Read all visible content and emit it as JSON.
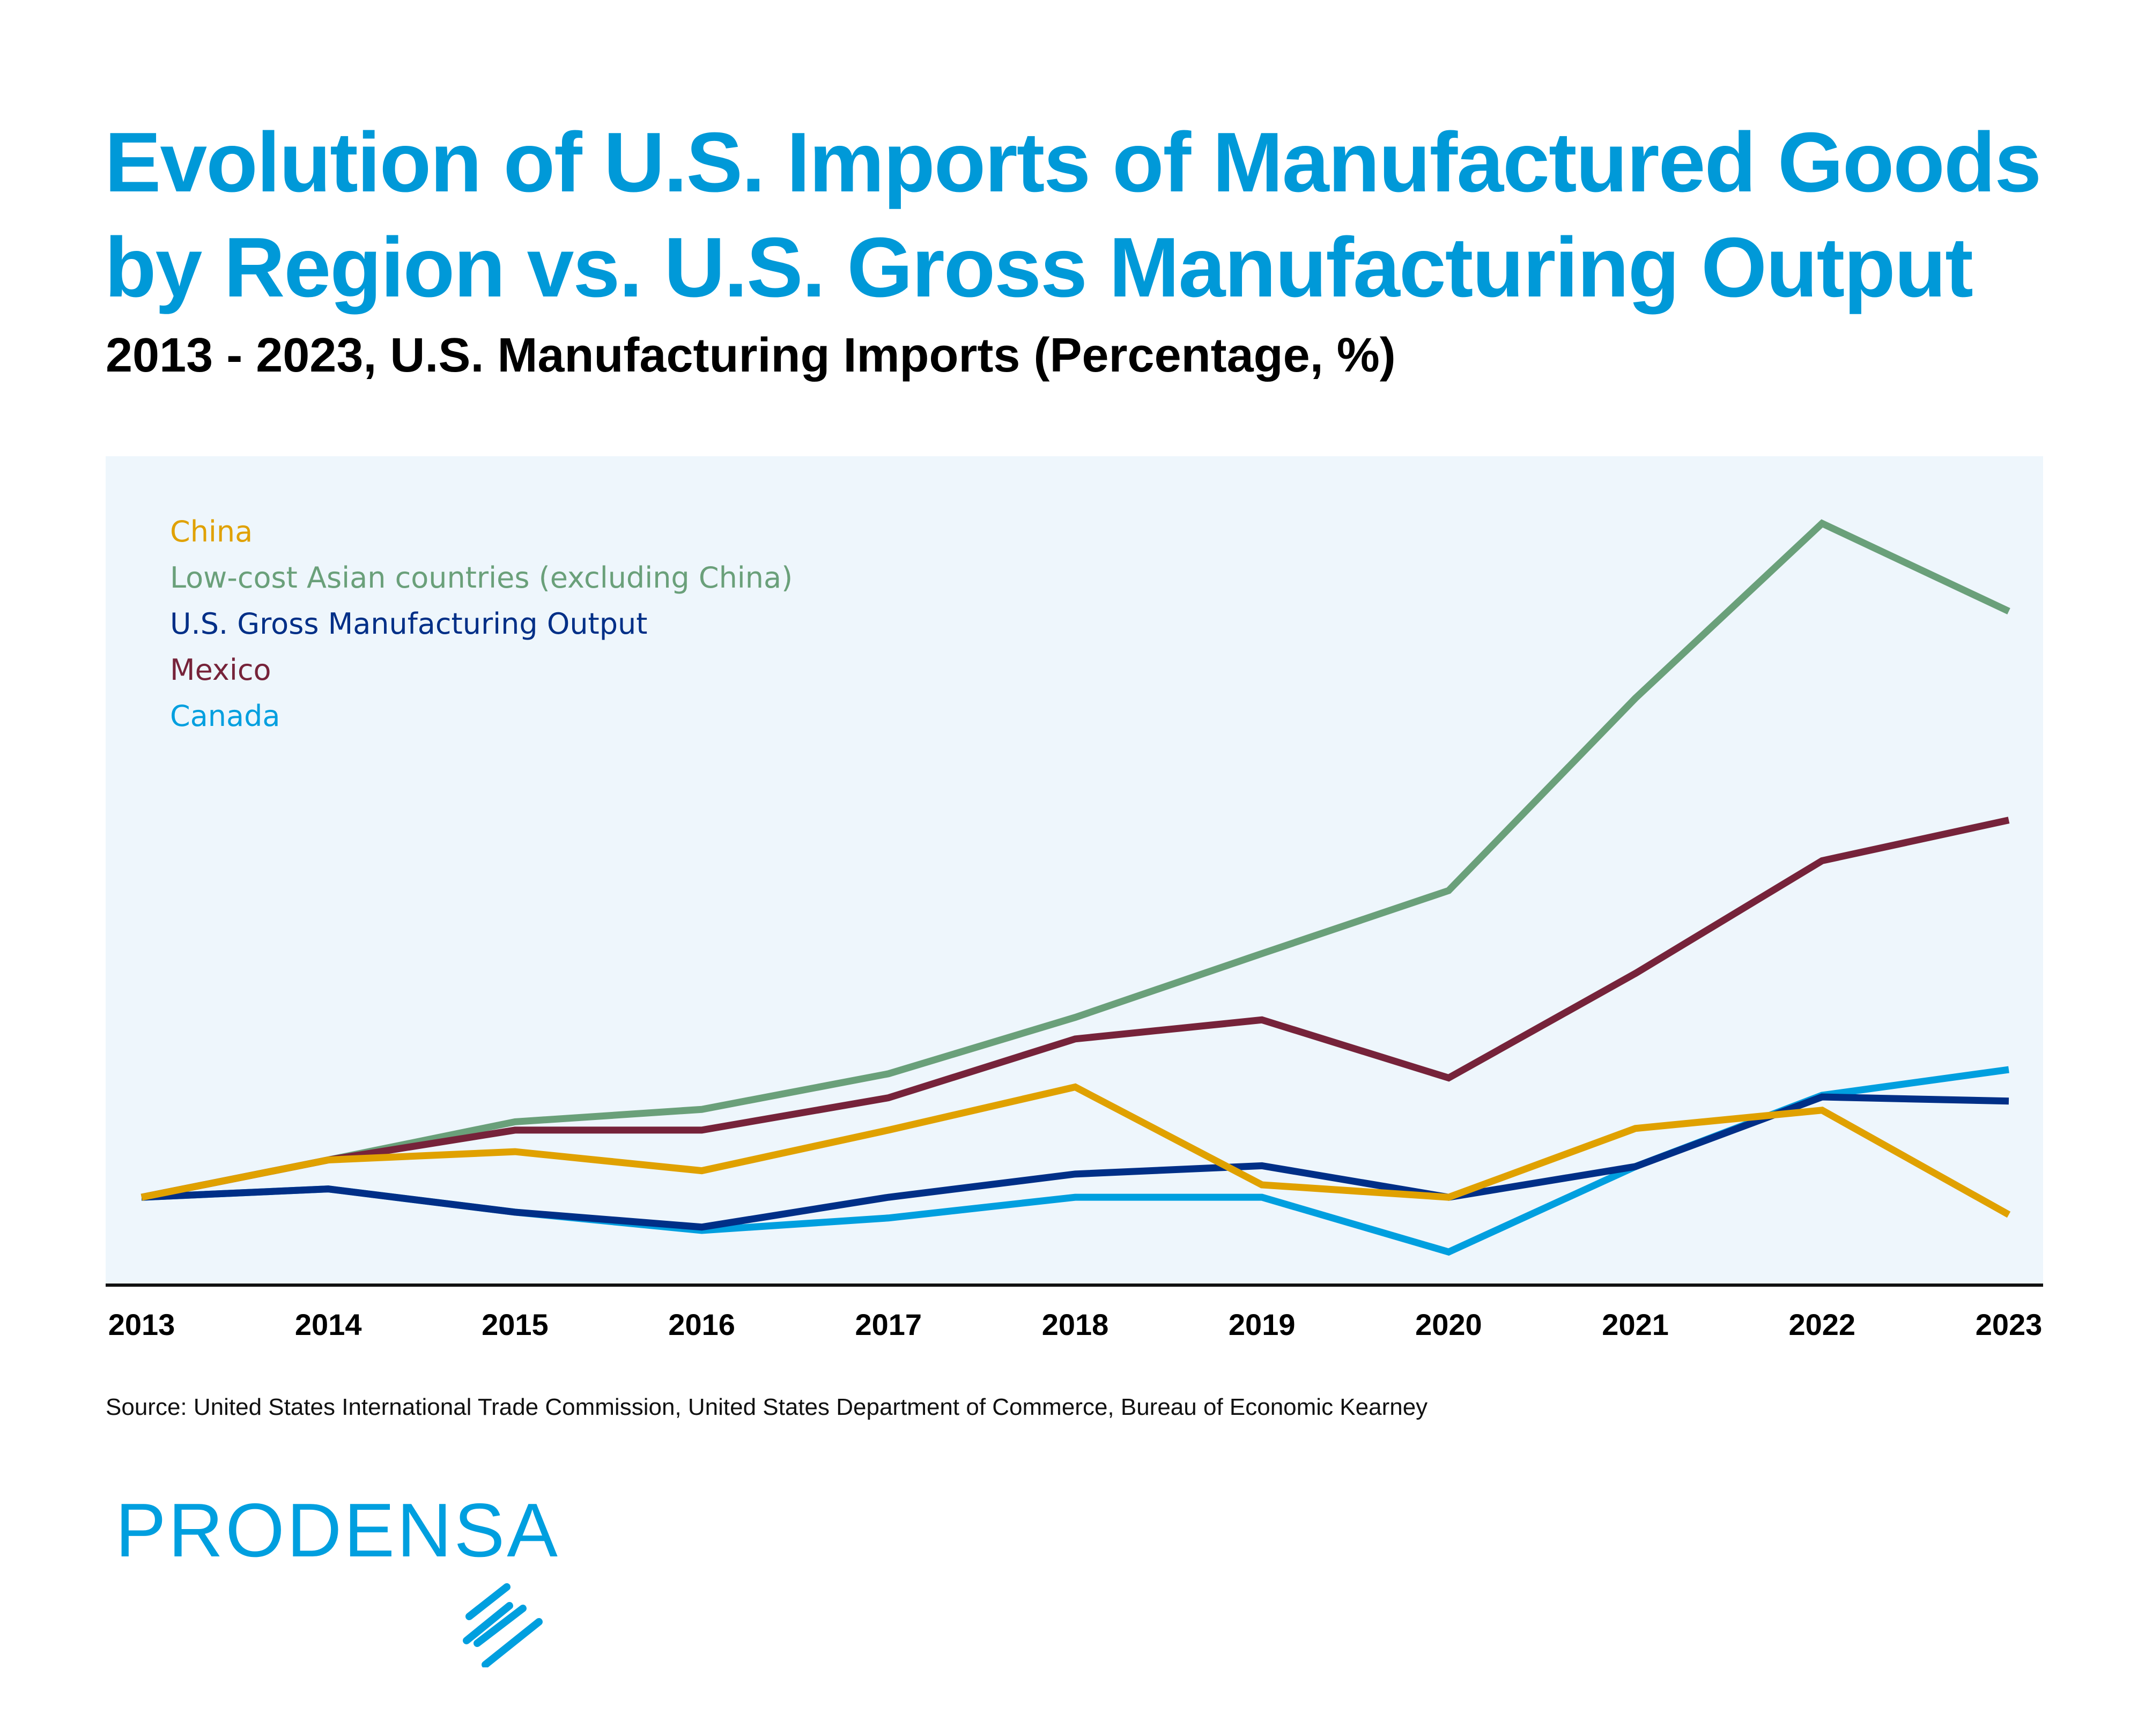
{
  "title": {
    "line1": "Evolution of U.S. Imports of Manufactured Goods",
    "line2": "by Region vs. U.S. Gross Manufacturing Output"
  },
  "subtitle": "2013 - 2023, U.S. Manufacturing Imports (Percentage, %)",
  "source": "Source: United States International Trade Commission, United States Department of Commerce, Bureau of Economic Kearney",
  "logo": {
    "text": "PRODENSA",
    "color": "#009fdf"
  },
  "chart_data": {
    "type": "line",
    "title": "",
    "xlabel": "",
    "ylabel": "",
    "y_axis_shown": false,
    "value_note_scale": "relative, unlabeled axis",
    "ylim": [
      0,
      100
    ],
    "grid": false,
    "legend_position": "top-left",
    "background": "#eef6fc",
    "categories": [
      "2013",
      "2014",
      "2015",
      "2016",
      "2017",
      "2018",
      "2019",
      "2020",
      "2021",
      "2022",
      "2023"
    ],
    "series": [
      {
        "name": "China",
        "color": "#e0a100",
        "values": [
          10.6,
          15.1,
          16.1,
          13.8,
          18.7,
          23.9,
          12.1,
          10.6,
          18.9,
          21.1,
          8.5
        ]
      },
      {
        "name": "Low-cost Asian countries (excluding China)",
        "color": "#6aa07a",
        "values": [
          10.6,
          15.1,
          19.7,
          21.2,
          25.5,
          32.3,
          40.0,
          47.6,
          70.8,
          91.9,
          81.3
        ]
      },
      {
        "name": "U.S. Gross Manufacturing Output",
        "color": "#002f87",
        "values": [
          10.6,
          11.6,
          8.8,
          7.0,
          10.6,
          13.4,
          14.4,
          10.6,
          14.3,
          22.7,
          22.2
        ]
      },
      {
        "name": "Mexico",
        "color": "#76233a",
        "values": [
          10.6,
          15.1,
          18.7,
          18.7,
          22.6,
          29.7,
          32.0,
          25.0,
          37.6,
          51.2,
          56.1
        ]
      },
      {
        "name": "Canada",
        "color": "#009fdf",
        "values": [
          10.6,
          11.6,
          8.8,
          6.6,
          8.1,
          10.6,
          10.6,
          4.0,
          14.3,
          22.9,
          26.0
        ]
      }
    ]
  }
}
